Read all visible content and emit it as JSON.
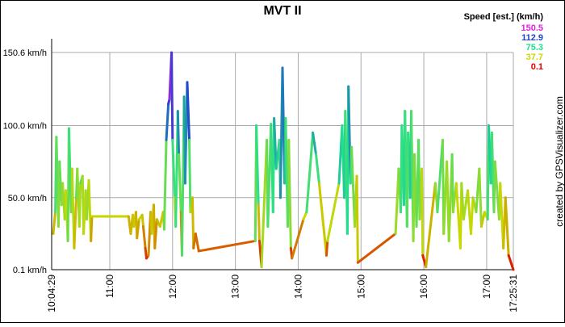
{
  "chart_data": {
    "type": "line",
    "title": "MVT II",
    "credit": "created by GPSVisualizer.com",
    "legend_title": "Speed [est.] (km/h)",
    "color_scale": [
      {
        "value": 150.5,
        "color": "#e020e0"
      },
      {
        "value": 112.9,
        "color": "#2040d0"
      },
      {
        "value": 75.3,
        "color": "#20e090"
      },
      {
        "value": 37.7,
        "color": "#c8d800"
      },
      {
        "value": 0.1,
        "color": "#e00000"
      }
    ],
    "ylim": [
      0.1,
      150.6
    ],
    "yticks": [
      {
        "value": 150.6,
        "label": "150.6 km/h"
      },
      {
        "value": 100.0,
        "label": "100.0 km/h"
      },
      {
        "value": 50.0,
        "label": "50.0 km/h"
      },
      {
        "value": 0.1,
        "label": "0.1 km/h"
      }
    ],
    "xlim": [
      "10:04:29",
      "17:25:31"
    ],
    "xticks": [
      "10:04:29",
      "11:00",
      "12:00",
      "13:00",
      "14:00",
      "15:00",
      "16:00",
      "17:00",
      "17:25:31"
    ],
    "grid": true,
    "x": [
      "10:06",
      "10:08",
      "10:09",
      "10:11",
      "10:12",
      "10:14",
      "10:15",
      "10:17",
      "10:18",
      "10:20",
      "10:21",
      "10:23",
      "10:24",
      "10:26",
      "10:28",
      "10:29",
      "10:31",
      "10:32",
      "10:34",
      "10:35",
      "10:37",
      "10:38",
      "10:40",
      "10:42",
      "10:43",
      "11:00",
      "11:18",
      "11:20",
      "11:22",
      "11:23",
      "11:25",
      "11:26",
      "11:28",
      "11:31",
      "11:32",
      "11:34",
      "11:35",
      "11:37",
      "11:39",
      "11:40",
      "11:42",
      "11:43",
      "11:45",
      "11:48",
      "11:51",
      "11:52",
      "11:54",
      "11:56",
      "11:57",
      "11:59",
      "12:00",
      "12:02",
      "12:03",
      "12:05",
      "12:06",
      "12:08",
      "12:09",
      "12:11",
      "12:12",
      "12:14",
      "12:16",
      "12:17",
      "12:19",
      "12:20",
      "12:22",
      "12:25",
      "13:19",
      "13:20",
      "13:22",
      "13:23",
      "13:25",
      "13:30",
      "13:31",
      "13:34",
      "13:36",
      "13:37",
      "13:39",
      "13:42",
      "13:43",
      "13:45",
      "13:47",
      "13:48",
      "13:50",
      "13:51",
      "13:53",
      "13:54",
      "14:05",
      "14:08",
      "14:14",
      "14:17",
      "14:20",
      "14:27",
      "14:28",
      "14:39",
      "14:42",
      "14:44",
      "14:45",
      "14:47",
      "14:48",
      "14:50",
      "14:51",
      "14:54",
      "14:56",
      "14:57",
      "15:33",
      "15:36",
      "15:38",
      "15:39",
      "15:41",
      "15:42",
      "15:44",
      "15:45",
      "15:47",
      "15:48",
      "15:50",
      "15:51",
      "15:53",
      "15:55",
      "15:56",
      "15:58",
      "15:59",
      "16:02",
      "16:11",
      "16:13",
      "16:18",
      "16:19",
      "16:22",
      "16:24",
      "16:27",
      "16:28",
      "16:31",
      "16:35",
      "16:36",
      "16:38",
      "16:42",
      "16:45",
      "16:47",
      "16:50",
      "16:53",
      "16:55",
      "16:58",
      "17:01",
      "17:02",
      "17:04",
      "17:05",
      "17:07",
      "17:08",
      "17:12",
      "17:13",
      "17:16",
      "17:18",
      "17:21",
      "17:25:31"
    ],
    "values": [
      25,
      40,
      92,
      30,
      75,
      45,
      60,
      35,
      55,
      20,
      98,
      40,
      70,
      15,
      50,
      70,
      30,
      60,
      65,
      25,
      55,
      35,
      62,
      20,
      37,
      37,
      37,
      25,
      38,
      30,
      40,
      22,
      35,
      38,
      30,
      15,
      8,
      10,
      40,
      25,
      45,
      15,
      35,
      30,
      40,
      28,
      90,
      115,
      118,
      150.5,
      90,
      50,
      30,
      110,
      80,
      40,
      10,
      120,
      60,
      130,
      90,
      40,
      50,
      15,
      25,
      13,
      20,
      100,
      45,
      20,
      2,
      90,
      30,
      101,
      40,
      105,
      70,
      90,
      50,
      140,
      60,
      105,
      30,
      90,
      15,
      8,
      35,
      40,
      95,
      80,
      60,
      10,
      20,
      60,
      100,
      50,
      110,
      25,
      127,
      60,
      85,
      30,
      65,
      5,
      25,
      70,
      40,
      100,
      45,
      110,
      30,
      95,
      50,
      110,
      20,
      80,
      30,
      90,
      35,
      70,
      10,
      2,
      60,
      40,
      90,
      25,
      75,
      20,
      80,
      40,
      60,
      15,
      60,
      35,
      55,
      25,
      50,
      40,
      70,
      30,
      40,
      35,
      100,
      60,
      95,
      40,
      75,
      35,
      60,
      15,
      50,
      10,
      0.1
    ]
  }
}
